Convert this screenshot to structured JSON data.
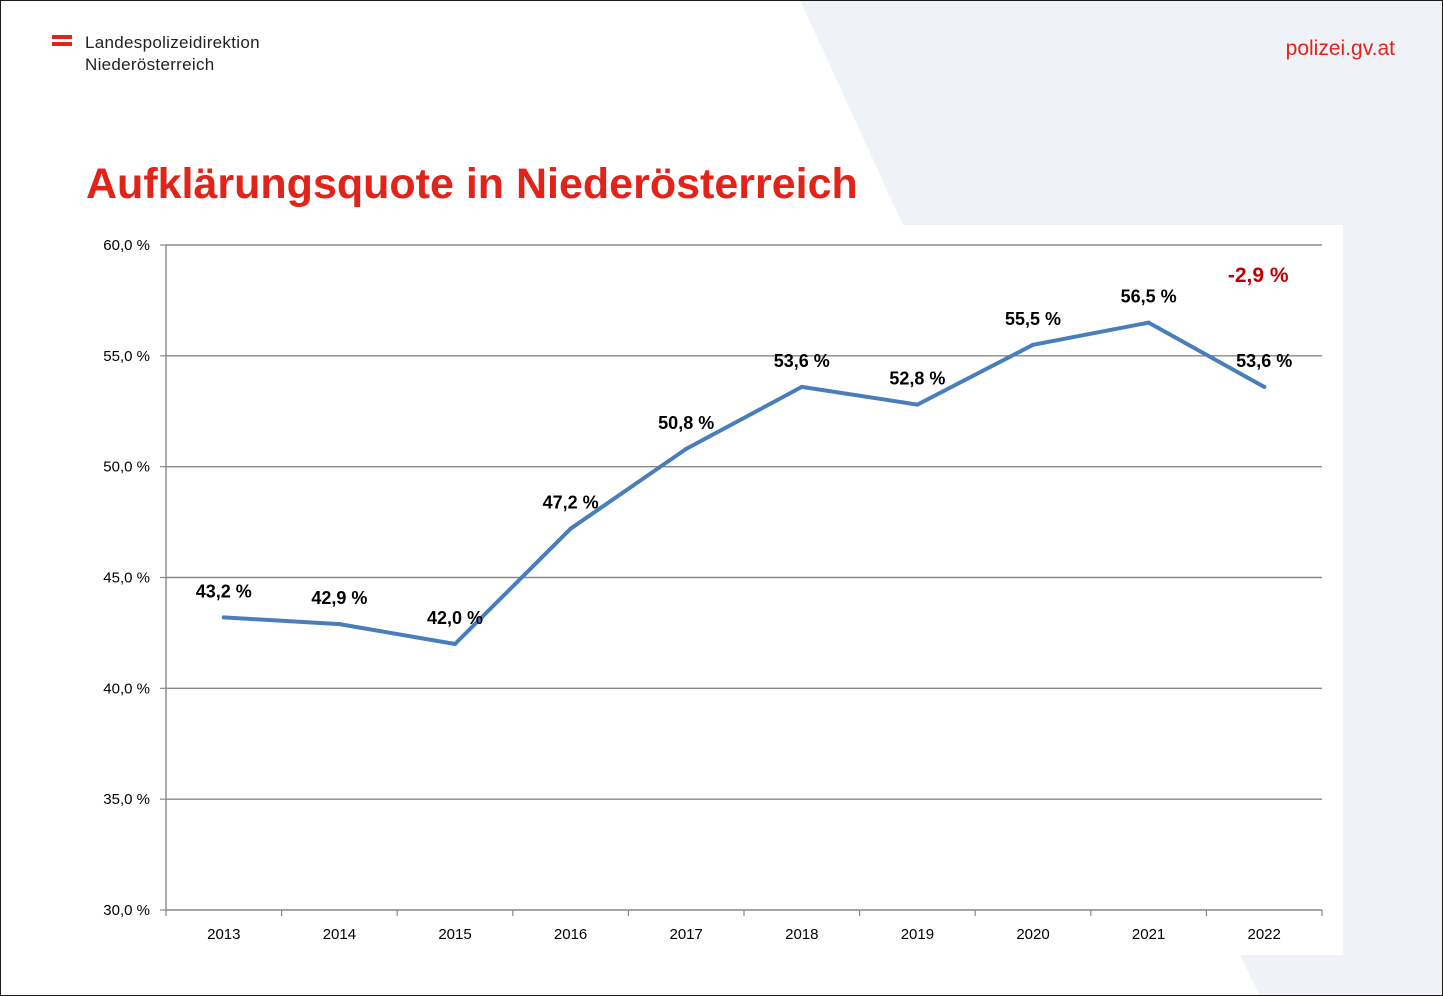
{
  "header": {
    "org_line1": "Landespolizeidirektion",
    "org_line2": "Niederösterreich",
    "site": "polizei.gv.at"
  },
  "colors": {
    "brand_red": "#e2231a",
    "series_blue": "#4a7ebb",
    "change_red": "#c00000",
    "panel_bg": "#eff3f7"
  },
  "chart_data": {
    "type": "line",
    "title": "Aufklärungsquote in Niederösterreich",
    "xlabel": "",
    "ylabel": "",
    "categories": [
      "2013",
      "2014",
      "2015",
      "2016",
      "2017",
      "2018",
      "2019",
      "2020",
      "2021",
      "2022"
    ],
    "series": [
      {
        "values": [
          43.2,
          42.9,
          42.0,
          47.2,
          50.8,
          53.6,
          52.8,
          55.5,
          56.5,
          53.6
        ],
        "labels": [
          "43,2 %",
          "42,9 %",
          "42,0 %",
          "47,2 %",
          "50,8 %",
          "53,6 %",
          "52,8 %",
          "55,5 %",
          "56,5 %",
          "53,6 %"
        ]
      }
    ],
    "ylim": [
      30,
      60
    ],
    "yticks": [
      30,
      35,
      40,
      45,
      50,
      55,
      60
    ],
    "ytick_labels": [
      "30,0 %",
      "35,0 %",
      "40,0 %",
      "45,0 %",
      "50,0 %",
      "55,0 %",
      "60,0 %"
    ],
    "grid": true,
    "annotation": "-2,9 %"
  }
}
